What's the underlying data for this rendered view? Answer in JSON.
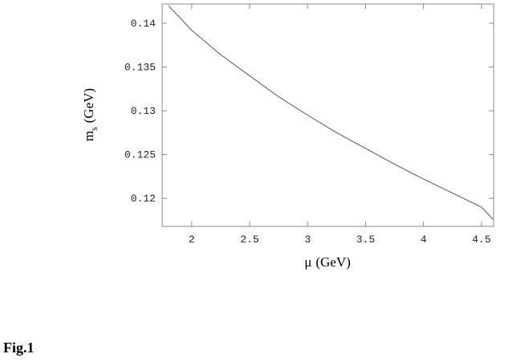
{
  "chart_data": {
    "type": "line",
    "x_label": {
      "symbol": "μ",
      "unit": "(GeV)"
    },
    "y_label": {
      "symbol": "m",
      "sub": "s",
      "unit": "(GeV)"
    },
    "caption": "Fig.1",
    "x": [
      1.8,
      2.0,
      2.25,
      2.5,
      2.75,
      3.0,
      3.25,
      3.5,
      3.75,
      4.0,
      4.25,
      4.5,
      4.6
    ],
    "values": [
      0.142,
      0.1392,
      0.1364,
      0.134,
      0.1316,
      0.1295,
      0.1275,
      0.1257,
      0.1239,
      0.1222,
      0.1206,
      0.119,
      0.1176
    ],
    "color": "#555555",
    "xlim": [
      1.745,
      4.605
    ],
    "ylim": [
      0.1168,
      0.1422
    ],
    "xticks": [
      2,
      2.5,
      3,
      3.5,
      4,
      4.5
    ],
    "yticks": [
      0.12,
      0.125,
      0.13,
      0.135,
      0.14
    ]
  }
}
